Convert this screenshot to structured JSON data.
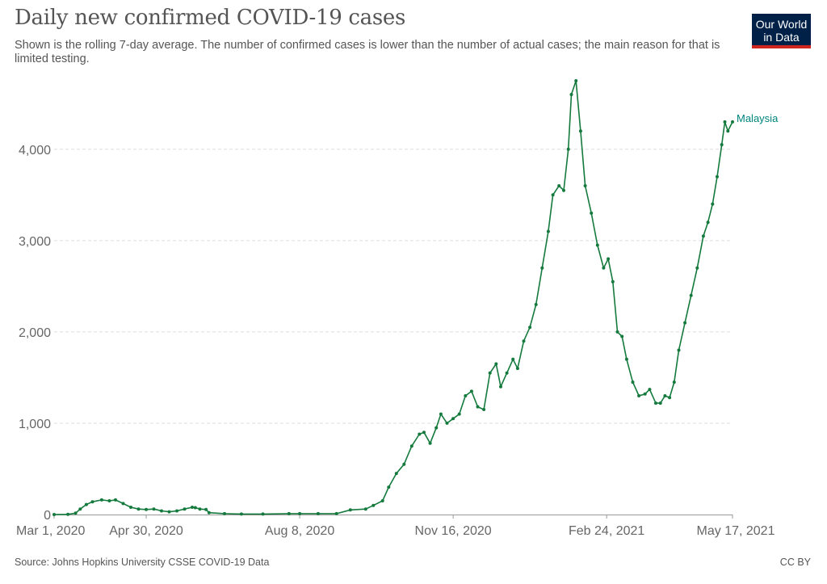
{
  "header": {
    "title": "Daily new confirmed COVID-19 cases",
    "subtitle": "Shown is the rolling 7-day average. The number of confirmed cases is lower than the number of actual cases; the main reason for that is limited testing.",
    "logo_line1": "Our World",
    "logo_line2": "in Data"
  },
  "footer": {
    "source": "Source: Johns Hopkins University CSSE COVID-19 Data",
    "license": "CC BY"
  },
  "colors": {
    "series": "#157a3d",
    "series_label": "#00847e",
    "logo_bg": "#002147",
    "logo_accent": "#ce261e"
  },
  "chart_data": {
    "type": "line",
    "title": "Daily new confirmed COVID-19 cases",
    "xlabel": "",
    "ylabel": "",
    "x_ticks": [
      "Mar 1, 2020",
      "Apr 30, 2020",
      "Aug 8, 2020",
      "Nov 16, 2020",
      "Feb 24, 2021",
      "May 17, 2021"
    ],
    "y_ticks": [
      "0",
      "1,000",
      "2,000",
      "3,000",
      "4,000"
    ],
    "ylim": [
      0,
      4750
    ],
    "xlim": [
      "2020-03-01",
      "2021-05-17"
    ],
    "grid": "horizontal-dashed",
    "series": [
      {
        "name": "Malaysia",
        "points": [
          [
            "2020-03-01",
            0
          ],
          [
            "2020-03-10",
            2
          ],
          [
            "2020-03-15",
            15
          ],
          [
            "2020-03-18",
            60
          ],
          [
            "2020-03-22",
            110
          ],
          [
            "2020-03-26",
            140
          ],
          [
            "2020-04-01",
            160
          ],
          [
            "2020-04-06",
            150
          ],
          [
            "2020-04-10",
            160
          ],
          [
            "2020-04-15",
            120
          ],
          [
            "2020-04-20",
            80
          ],
          [
            "2020-04-25",
            60
          ],
          [
            "2020-04-30",
            55
          ],
          [
            "2020-05-05",
            60
          ],
          [
            "2020-05-10",
            40
          ],
          [
            "2020-05-15",
            30
          ],
          [
            "2020-05-20",
            40
          ],
          [
            "2020-05-25",
            60
          ],
          [
            "2020-05-30",
            80
          ],
          [
            "2020-06-01",
            75
          ],
          [
            "2020-06-04",
            60
          ],
          [
            "2020-06-08",
            55
          ],
          [
            "2020-06-10",
            20
          ],
          [
            "2020-06-20",
            10
          ],
          [
            "2020-07-01",
            5
          ],
          [
            "2020-07-15",
            5
          ],
          [
            "2020-08-01",
            10
          ],
          [
            "2020-08-08",
            10
          ],
          [
            "2020-08-20",
            10
          ],
          [
            "2020-09-01",
            10
          ],
          [
            "2020-09-10",
            50
          ],
          [
            "2020-09-20",
            60
          ],
          [
            "2020-09-25",
            100
          ],
          [
            "2020-10-01",
            150
          ],
          [
            "2020-10-05",
            300
          ],
          [
            "2020-10-10",
            450
          ],
          [
            "2020-10-15",
            550
          ],
          [
            "2020-10-20",
            750
          ],
          [
            "2020-10-25",
            880
          ],
          [
            "2020-10-28",
            900
          ],
          [
            "2020-11-01",
            780
          ],
          [
            "2020-11-05",
            950
          ],
          [
            "2020-11-08",
            1100
          ],
          [
            "2020-11-12",
            1000
          ],
          [
            "2020-11-16",
            1050
          ],
          [
            "2020-11-20",
            1100
          ],
          [
            "2020-11-24",
            1300
          ],
          [
            "2020-11-28",
            1350
          ],
          [
            "2020-12-02",
            1180
          ],
          [
            "2020-12-06",
            1150
          ],
          [
            "2020-12-10",
            1550
          ],
          [
            "2020-12-14",
            1650
          ],
          [
            "2020-12-17",
            1400
          ],
          [
            "2020-12-21",
            1550
          ],
          [
            "2020-12-25",
            1700
          ],
          [
            "2020-12-28",
            1600
          ],
          [
            "2021-01-01",
            1900
          ],
          [
            "2021-01-05",
            2050
          ],
          [
            "2021-01-09",
            2300
          ],
          [
            "2021-01-13",
            2700
          ],
          [
            "2021-01-17",
            3100
          ],
          [
            "2021-01-20",
            3500
          ],
          [
            "2021-01-24",
            3600
          ],
          [
            "2021-01-27",
            3550
          ],
          [
            "2021-01-30",
            4000
          ],
          [
            "2021-02-01",
            4600
          ],
          [
            "2021-02-04",
            4750
          ],
          [
            "2021-02-07",
            4200
          ],
          [
            "2021-02-10",
            3600
          ],
          [
            "2021-02-14",
            3300
          ],
          [
            "2021-02-18",
            2950
          ],
          [
            "2021-02-22",
            2700
          ],
          [
            "2021-02-25",
            2800
          ],
          [
            "2021-02-28",
            2550
          ],
          [
            "2021-03-03",
            2000
          ],
          [
            "2021-03-06",
            1950
          ],
          [
            "2021-03-09",
            1700
          ],
          [
            "2021-03-13",
            1450
          ],
          [
            "2021-03-17",
            1300
          ],
          [
            "2021-03-21",
            1320
          ],
          [
            "2021-03-24",
            1370
          ],
          [
            "2021-03-28",
            1220
          ],
          [
            "2021-03-31",
            1220
          ],
          [
            "2021-04-03",
            1300
          ],
          [
            "2021-04-06",
            1280
          ],
          [
            "2021-04-09",
            1450
          ],
          [
            "2021-04-12",
            1800
          ],
          [
            "2021-04-16",
            2100
          ],
          [
            "2021-04-20",
            2400
          ],
          [
            "2021-04-24",
            2700
          ],
          [
            "2021-04-28",
            3050
          ],
          [
            "2021-05-01",
            3200
          ],
          [
            "2021-05-04",
            3400
          ],
          [
            "2021-05-07",
            3700
          ],
          [
            "2021-05-10",
            4050
          ],
          [
            "2021-05-12",
            4300
          ],
          [
            "2021-05-14",
            4200
          ],
          [
            "2021-05-17",
            4300
          ]
        ]
      }
    ]
  }
}
